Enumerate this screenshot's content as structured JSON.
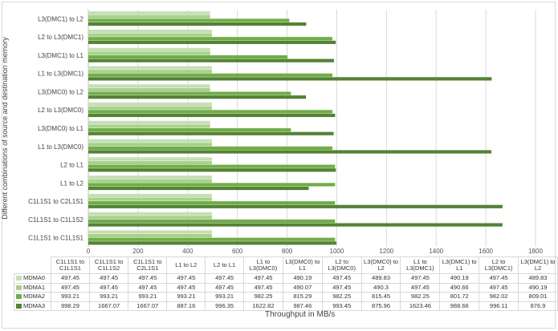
{
  "chart_data": {
    "type": "bar",
    "orientation": "horizontal",
    "categories": [
      "C1L1S1 to C1L1S1",
      "C1L1S1 to C1L1S2",
      "C1L1S1 to C2L1S1",
      "L1 to L2",
      "L2 to L1",
      "L1 to L3(DMC0)",
      "L3(DMC0) to L1",
      "L2 to L3(DMC0)",
      "L3(DMC0) to L2",
      "L1 to L3(DMC1)",
      "L3(DMC1) to L1",
      "L2 to L3(DMC1)",
      "L3(DMC1) to L2"
    ],
    "table_headers": [
      "C1L1S1 to C1L1S1",
      "C1L1S1 to C1L1S2",
      "C1L1S1 to C2L1S1",
      "L1 to L2",
      "L2 to L1",
      "L1 to L3(DMC0)",
      "L3(DMC0) to L1",
      "L2 to L3(DMC0)",
      "L3(DMC0) to L2",
      "L1 to L3(DMC1)",
      "L3(DMC1) to L1",
      "L2 to L3(DMC1)",
      "L3(DMC1) to L2"
    ],
    "series": [
      {
        "name": "MDMA0",
        "color": "#c5e0b4",
        "values": [
          497.45,
          497.45,
          497.45,
          497.45,
          497.45,
          497.45,
          490.19,
          497.45,
          489.83,
          497.45,
          490.19,
          497.45,
          489.83
        ]
      },
      {
        "name": "MDMA1",
        "color": "#a9d18e",
        "values": [
          497.45,
          497.45,
          497.45,
          497.45,
          497.45,
          497.45,
          490.07,
          497.45,
          490.3,
          497.45,
          490.66,
          497.45,
          490.19
        ]
      },
      {
        "name": "MDMA2",
        "color": "#70ad47",
        "values": [
          993.21,
          993.21,
          993.21,
          993.21,
          993.21,
          982.25,
          815.29,
          982.25,
          815.45,
          982.25,
          801.72,
          982.02,
          809.01
        ]
      },
      {
        "name": "MDMA3",
        "color": "#548235",
        "values": [
          998.29,
          1667.07,
          1667.07,
          887.16,
          996.35,
          1622.82,
          987.46,
          993.45,
          875.96,
          1623.46,
          988.66,
          996.11,
          876.9
        ]
      }
    ],
    "xlim": [
      0,
      1800
    ],
    "xticks": [
      "0",
      "200",
      "400",
      "600",
      "800",
      "1000",
      "1200",
      "1400",
      "1600",
      "1800"
    ],
    "xlabel": "Throughput in MB/s",
    "ylabel": "Different  combinations of source and destination memory",
    "grid": true,
    "legend": "data-table"
  }
}
